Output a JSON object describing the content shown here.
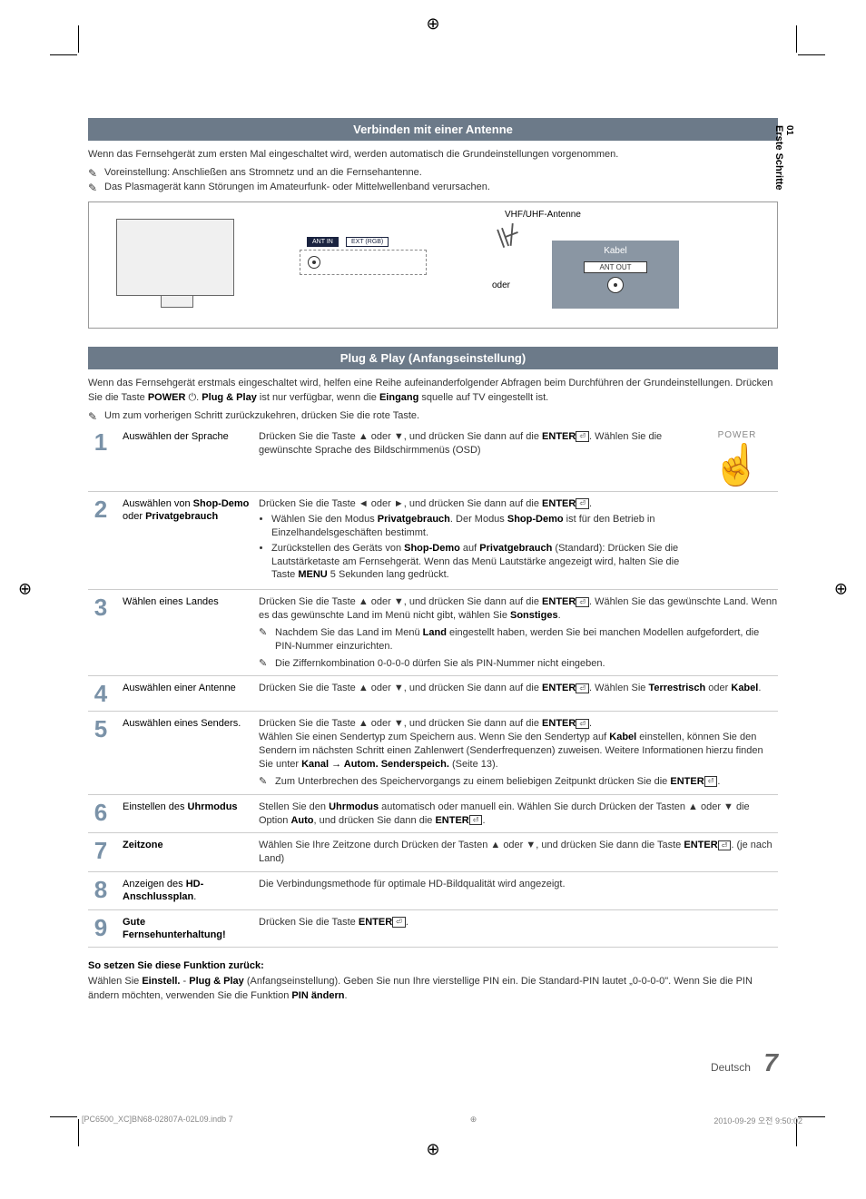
{
  "registration_marks": {
    "glyph": "⊕"
  },
  "side_tab": {
    "num": "01",
    "label": "Erste Schritte"
  },
  "section1": {
    "header": "Verbinden mit einer Antenne",
    "intro": "Wenn das Fernsehgerät zum ersten Mal eingeschaltet wird, werden automatisch die Grundeinstellungen vorgenommen.",
    "notes": [
      "Voreinstellung: Anschließen ans Stromnetz und an die Fernsehantenne.",
      "Das Plasmagerät kann Störungen im Amateurfunk- oder Mittelwellenband verursachen."
    ],
    "diagram": {
      "ant_in": "ANT IN",
      "ext": "EXT (RGB)",
      "vhf": "VHF/UHF-Antenne",
      "oder": "oder",
      "kabel": "Kabel",
      "ant_out": "ANT OUT"
    }
  },
  "section2": {
    "header": "Plug & Play (Anfangseinstellung)",
    "intro_a": "Wenn das Fernsehgerät erstmals eingeschaltet wird, helfen eine Reihe aufeinanderfolgender Abfragen beim Durchführen der Grundeinstellungen. Drücken Sie die Taste ",
    "intro_power": "POWER",
    "intro_b": ". ",
    "intro_pp": "Plug & Play",
    "intro_c": " ist nur verfügbar, wenn die ",
    "intro_eingang": "Eingang",
    "intro_d": " squelle auf TV eingestellt ist.",
    "back_note": "Um zum vorherigen Schritt zurückzukehren, drücken Sie die rote Taste.",
    "power_label": "POWER"
  },
  "steps": [
    {
      "num": "1",
      "title": "Auswählen der Sprache",
      "body_html": "Drücken Sie die Taste ▲ oder ▼, und drücken Sie dann auf die <b>ENTER</b><span class='enter-icon'>⏎</span>. Wählen Sie die gewünschte Sprache des Bildschirmmenüs (OSD)"
    },
    {
      "num": "2",
      "title_html": "Auswählen von <b>Shop-Demo</b> oder <b>Privatgebrauch</b>",
      "body_html": "Drücken Sie die Taste ◄ oder ►, und drücken Sie dann auf die <b>ENTER</b><span class='enter-icon'>⏎</span>.<ul><li>Wählen Sie den Modus <b>Privatgebrauch</b>. Der Modus <b>Shop-Demo</b> ist für den Betrieb in Einzelhandelsgeschäften bestimmt.</li><li>Zurückstellen des Geräts von <b>Shop-Demo</b> auf <b>Privatgebrauch</b> (Standard): Drücken Sie die Lautstärketaste am Fernsehgerät. Wenn das Menü Lautstärke angezeigt wird, halten Sie die Taste <b>MENU</b> 5 Sekunden lang gedrückt.</li></ul>"
    },
    {
      "num": "3",
      "title": "Wählen eines Landes",
      "body_html": "Drücken Sie die Taste ▲ oder ▼, und drücken Sie dann auf die <b>ENTER</b><span class='enter-icon'>⏎</span>. Wählen Sie das gewünschte Land. Wenn es das gewünschte Land im Menü nicht gibt, wählen Sie <b>Sonstiges</b>.<div class='subnote'><span class='note-icon'>✎</span>Nachdem Sie das Land im Menü <b>Land</b> eingestellt haben, werden Sie bei manchen Modellen aufgefordert, die PIN-Nummer einzurichten.</div><div class='subnote'><span class='note-icon'>✎</span>Die Ziffernkombination 0-0-0-0 dürfen Sie als PIN-Nummer nicht eingeben.</div>"
    },
    {
      "num": "4",
      "title": "Auswählen einer Antenne",
      "body_html": "Drücken Sie die Taste ▲ oder ▼, und drücken Sie dann auf die <b>ENTER</b><span class='enter-icon'>⏎</span>. Wählen Sie <b>Terrestrisch</b> oder <b>Kabel</b>."
    },
    {
      "num": "5",
      "title": "Auswählen eines Senders.",
      "body_html": "Drücken Sie die Taste ▲ oder ▼, und drücken Sie dann auf die <b>ENTER</b><span class='enter-icon'>⏎</span>.<br>Wählen Sie einen Sendertyp zum Speichern aus. Wenn Sie den Sendertyp auf <b>Kabel</b> einstellen, können Sie den Sendern im nächsten Schritt einen Zahlenwert (Senderfrequenzen) zuweisen. Weitere Informationen hierzu finden Sie unter <b>Kanal → Autom. Senderspeich.</b> (Seite 13).<div class='subnote'><span class='note-icon'>✎</span>Zum Unterbrechen des Speichervorgangs zu einem beliebigen Zeitpunkt drücken Sie die <b>ENTER</b><span class='enter-icon'>⏎</span>.</div>"
    },
    {
      "num": "6",
      "title_html": "Einstellen des <b>Uhrmodus</b>",
      "body_html": "Stellen Sie den <b>Uhrmodus</b> automatisch oder manuell ein. Wählen Sie durch Drücken der Tasten ▲ oder ▼ die Option <b>Auto</b>, und drücken Sie dann die <b>ENTER</b><span class='enter-icon'>⏎</span>."
    },
    {
      "num": "7",
      "title_html": "<b>Zeitzone</b>",
      "body_html": "Wählen Sie Ihre Zeitzone durch Drücken der Tasten ▲ oder ▼, und drücken Sie dann die Taste <b>ENTER</b><span class='enter-icon'>⏎</span>. (je nach Land)"
    },
    {
      "num": "8",
      "title_html": "Anzeigen des <b>HD-Anschlussplan</b>.",
      "body_html": "Die Verbindungsmethode für optimale HD-Bildqualität wird angezeigt."
    },
    {
      "num": "9",
      "title_html": "<b>Gute Fernsehunterhaltung!</b>",
      "body_html": "Drücken Sie die Taste <b>ENTER</b><span class='enter-icon'>⏎</span>."
    }
  ],
  "reset": {
    "heading": "So setzen Sie diese Funktion zurück:",
    "body_html": "Wählen Sie <b>Einstell.</b> - <b>Plug & Play</b> (Anfangseinstellung). Geben Sie nun Ihre vierstellige PIN ein. Die Standard-PIN lautet „0-0-0-0\". Wenn Sie die PIN ändern möchten, verwenden Sie die Funktion <b>PIN ändern</b>."
  },
  "footer": {
    "lang": "Deutsch",
    "page": "7",
    "print_left": "[PC6500_XC]BN68-02807A-02L09.indb   7",
    "print_right": "2010-09-29   오전 9:50:02"
  }
}
